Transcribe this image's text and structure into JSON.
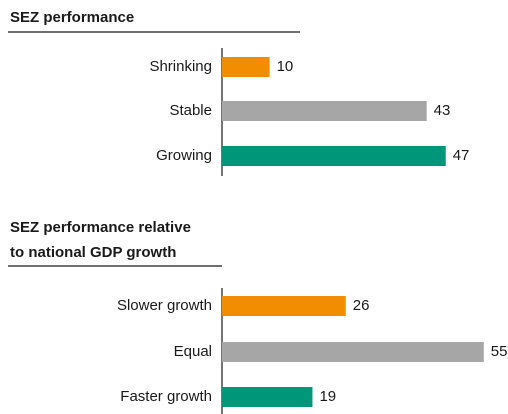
{
  "chart_data": [
    {
      "type": "hbar",
      "title": [
        "SEZ performance"
      ],
      "categories": [
        "Shrinking",
        "Stable",
        "Growing"
      ],
      "values": [
        10,
        43,
        47
      ],
      "colors": [
        "#f28c00",
        "#a6a6a6",
        "#00967a"
      ]
    },
    {
      "type": "hbar",
      "title": [
        "SEZ performance relative",
        "to national GDP growth"
      ],
      "categories": [
        "Slower growth",
        "Equal",
        "Faster growth"
      ],
      "values": [
        26,
        55,
        19
      ],
      "colors": [
        "#f28c00",
        "#a6a6a6",
        "#00967a"
      ]
    }
  ]
}
